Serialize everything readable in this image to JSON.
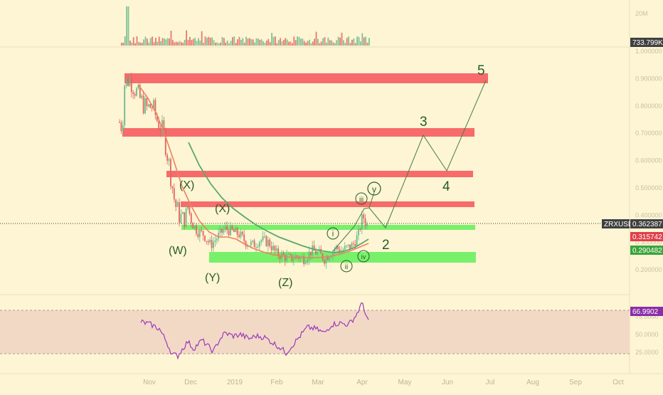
{
  "symbol_tag": "ZRXUSD",
  "price_tags": {
    "last": "0.362387",
    "red_ma": "0.315742",
    "green_ma": "0.290482",
    "volume": "733.799K",
    "rsi": "66.9902"
  },
  "volume_axis_label": "20M",
  "price_axis_ticks": [
    "1.000000",
    "0.900000",
    "0.800000",
    "0.700000",
    "0.600000",
    "0.500000",
    "0.400000",
    "0.300000",
    "0.200000"
  ],
  "rsi_axis_ticks": [
    "75.0000",
    "50.0000",
    "25.0000"
  ],
  "date_ticks": [
    "Nov",
    "Dec",
    "2019",
    "Feb",
    "Mar",
    "Apr",
    "May",
    "Jun",
    "Jul",
    "Aug",
    "Sep",
    "Oct"
  ],
  "wave_labels": {
    "W": "(W)",
    "X1": "(X)",
    "X2": "(X)",
    "Y": "(Y)",
    "Z": "(Z)",
    "i": "i",
    "ii": "ii",
    "iii": "iii",
    "iv": "iv",
    "v": "v",
    "n2": "2",
    "n3": "3",
    "n4": "4",
    "n5": "5"
  },
  "colors": {
    "background": "#fdf5d3",
    "resistance_zone": "#f76b6b",
    "support_zone": "#78f06a",
    "ma_red": "#ef7f63",
    "ma_green": "#5aa86b",
    "candle_up": "#6bb98c",
    "candle_down": "#e0655f",
    "rsi_line": "#9c3ab9",
    "rsi_band": "#f2d9c6",
    "price_tag": "#404040",
    "red_tag": "#e0404a",
    "green_tag": "#3aa43a",
    "rsi_tag": "#8a2ea8"
  },
  "chart_data": {
    "type": "candlestick",
    "symbol": "ZRXUSD",
    "price_axis": {
      "ylim": [
        0.2,
        1.0
      ],
      "ticks": [
        0.2,
        0.3,
        0.4,
        0.5,
        0.6,
        0.7,
        0.8,
        0.9,
        1.0
      ]
    },
    "current_price": 0.362387,
    "moving_averages": [
      {
        "color": "red",
        "last": 0.315742
      },
      {
        "color": "green",
        "last": 0.290482
      }
    ],
    "resistance_zones": [
      [
        0.88,
        0.9
      ],
      [
        0.69,
        0.71
      ],
      [
        0.55,
        0.565
      ],
      [
        0.43,
        0.445
      ]
    ],
    "support_zones": [
      [
        0.349,
        0.357
      ],
      [
        0.217,
        0.24
      ]
    ],
    "wave_count": [
      {
        "label": "(W)",
        "price": 0.31
      },
      {
        "label": "(X)",
        "price": 0.5
      },
      {
        "label": "(Y)",
        "price": 0.2
      },
      {
        "label": "(X)",
        "price": 0.36
      },
      {
        "label": "(Z)",
        "price": 0.18
      },
      {
        "label": "i",
        "price": 0.33
      },
      {
        "label": "ii",
        "price": 0.21
      },
      {
        "label": "iii",
        "price": 0.43
      },
      {
        "label": "iv",
        "price": 0.23
      },
      {
        "label": "v",
        "price": 0.47
      }
    ],
    "projection": [
      {
        "label": "2",
        "price": 0.35
      },
      {
        "label": "3",
        "price": 0.72
      },
      {
        "label": "4",
        "price": 0.57
      },
      {
        "label": "5",
        "price": 0.9
      }
    ],
    "rsi": {
      "ylim": [
        0,
        100
      ],
      "band": [
        30,
        70
      ],
      "ticks": [
        25,
        50,
        75
      ],
      "last": 66.9902
    },
    "volume": {
      "last": "733.799K",
      "axis_label": "20M"
    },
    "date_ticks": [
      "Nov",
      "Dec",
      "2019",
      "Feb",
      "Mar",
      "Apr",
      "May",
      "Jun",
      "Jul",
      "Aug",
      "Sep",
      "Oct"
    ]
  }
}
